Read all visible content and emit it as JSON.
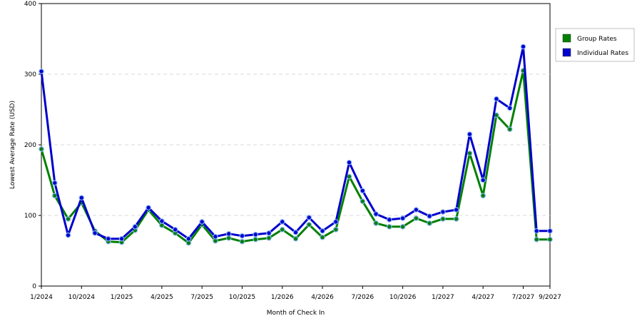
{
  "chart_data": {
    "type": "line",
    "title": "",
    "xlabel": "Month of Check In",
    "ylabel": "Lowest Average Rate (USD)",
    "ylim": [
      0,
      400
    ],
    "yticks": [
      0,
      100,
      200,
      300,
      400
    ],
    "grid": "horizontal dashed",
    "legend_position": "top-right",
    "x_tick_labels": [
      "1/2024",
      "10/2024",
      "1/2025",
      "4/2025",
      "7/2025",
      "10/2025",
      "1/2026",
      "4/2026",
      "7/2026",
      "10/2026",
      "1/2027",
      "4/2027",
      "7/2027",
      "9/2027"
    ],
    "series": [
      {
        "name": "Group Rates",
        "color": "#008000",
        "values": [
          194,
          128,
          95,
          118,
          78,
          63,
          62,
          79,
          108,
          86,
          75,
          61,
          87,
          64,
          68,
          63,
          66,
          68,
          80,
          67,
          87,
          69,
          80,
          155,
          120,
          89,
          84,
          84,
          96,
          89,
          95,
          95,
          188,
          128,
          242,
          222,
          305,
          66,
          66
        ]
      },
      {
        "name": "Individual Rates",
        "color": "#0000cc",
        "values": [
          304,
          146,
          72,
          125,
          75,
          67,
          67,
          84,
          111,
          92,
          80,
          67,
          91,
          70,
          74,
          71,
          73,
          75,
          91,
          76,
          97,
          78,
          91,
          175,
          135,
          102,
          94,
          96,
          108,
          99,
          105,
          108,
          215,
          150,
          265,
          252,
          339,
          78,
          78
        ]
      }
    ]
  }
}
